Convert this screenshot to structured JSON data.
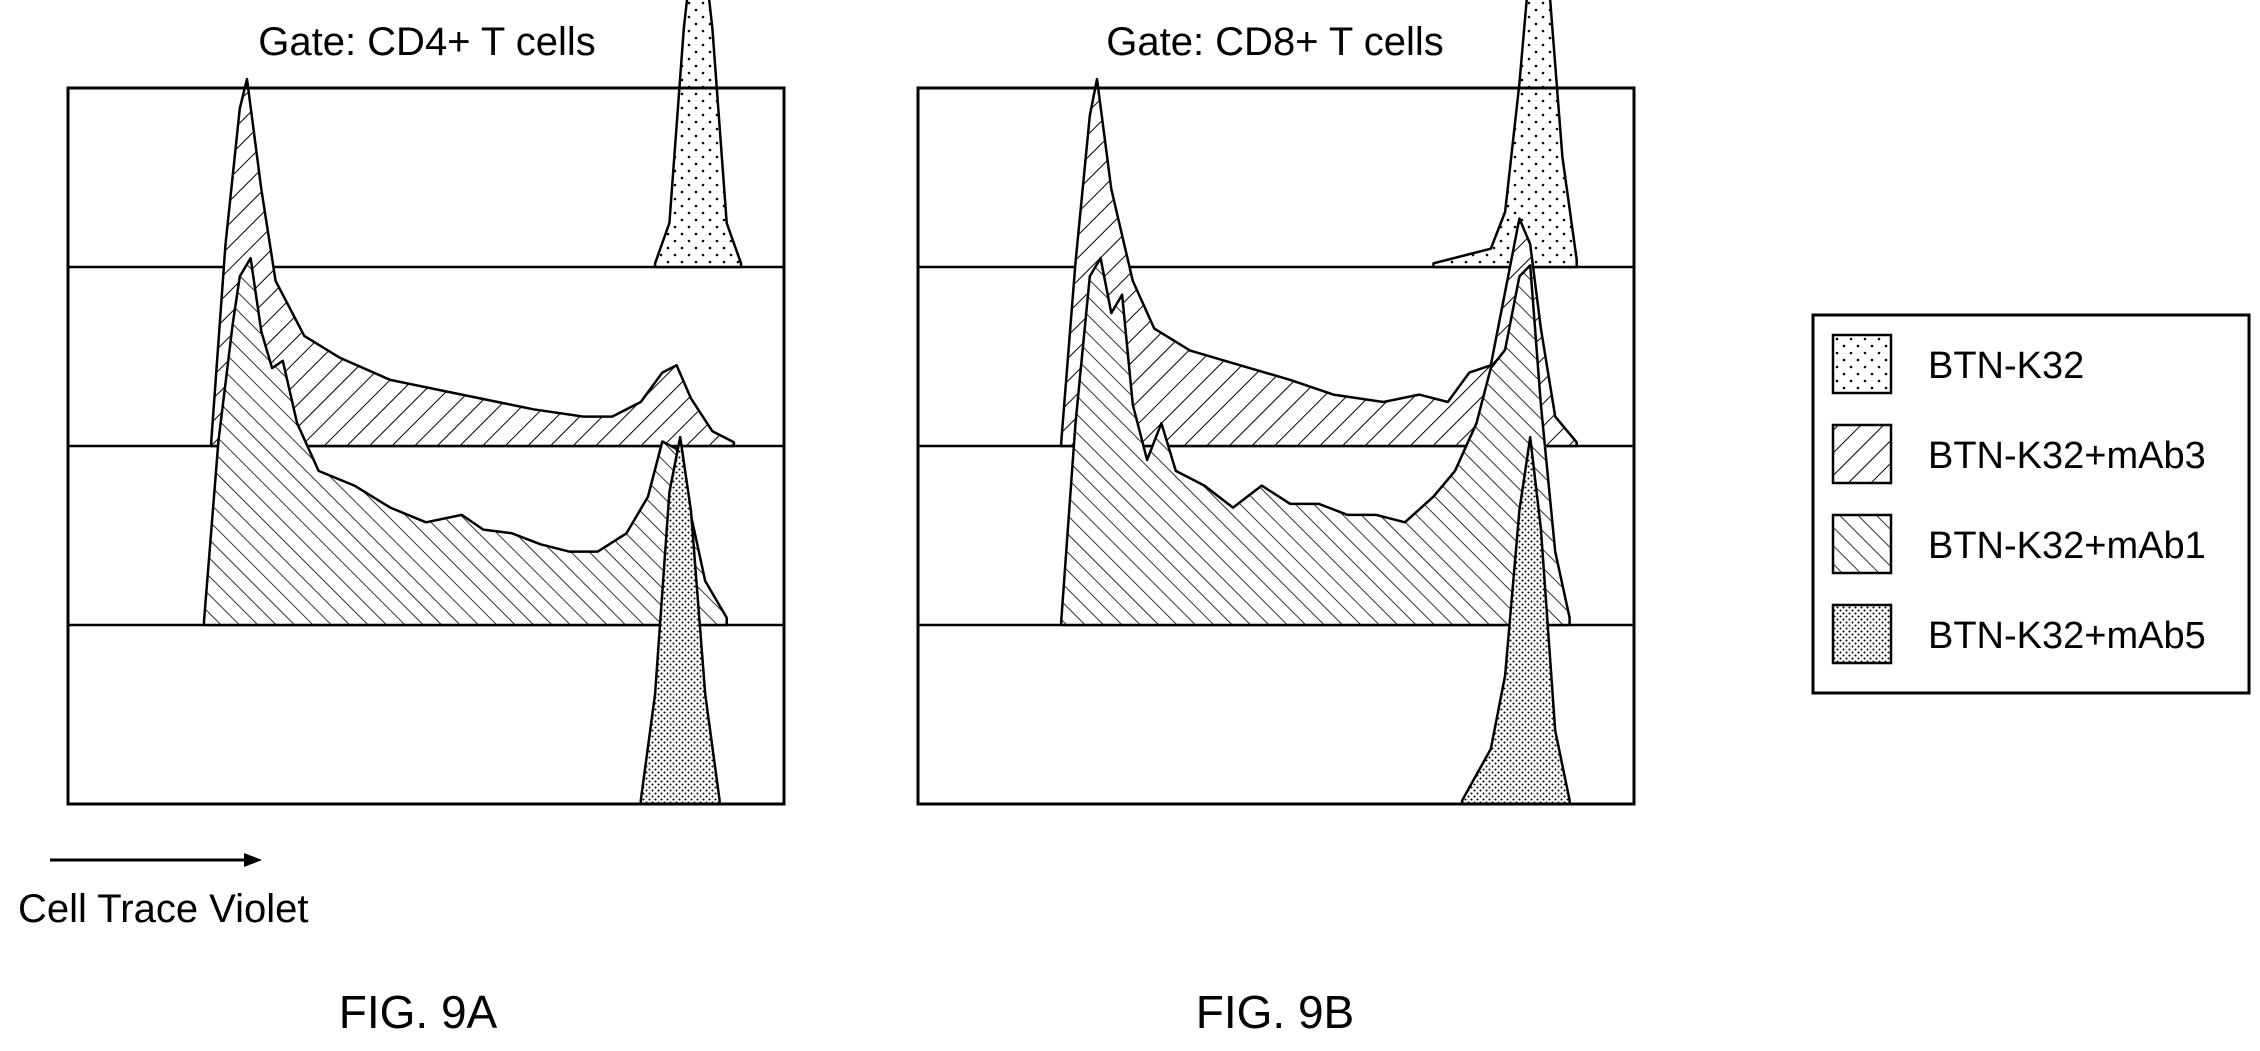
{
  "chart_data": {
    "type": "histogram-overlay",
    "x_axis_label": "Cell Trace Violet",
    "legend": {
      "placement": "right",
      "entries": [
        {
          "label": "BTN-K32",
          "pattern": "sparse-dots"
        },
        {
          "label": "BTN-K32+mAb3",
          "pattern": "forward-hatch"
        },
        {
          "label": "BTN-K32+mAb1",
          "pattern": "backward-hatch"
        },
        {
          "label": "BTN-K32+mAb5",
          "pattern": "dense-dots"
        }
      ]
    },
    "panels": [
      {
        "title": "Gate: CD4+ T cells",
        "caption": "FIG. 9A",
        "series": [
          {
            "name": "BTN-K32",
            "pattern": "sparse-dots",
            "points": [
              [
                0.82,
                0.01
              ],
              [
                0.84,
                0.12
              ],
              [
                0.86,
                0.65
              ],
              [
                0.88,
                1.0
              ],
              [
                0.9,
                0.65
              ],
              [
                0.92,
                0.12
              ],
              [
                0.94,
                0.01
              ]
            ]
          },
          {
            "name": "BTN-K32+mAb3",
            "pattern": "forward-hatch",
            "points": [
              [
                0.2,
                0.01
              ],
              [
                0.22,
                0.55
              ],
              [
                0.24,
                0.92
              ],
              [
                0.25,
                1.0
              ],
              [
                0.27,
                0.7
              ],
              [
                0.29,
                0.45
              ],
              [
                0.33,
                0.3
              ],
              [
                0.38,
                0.24
              ],
              [
                0.45,
                0.18
              ],
              [
                0.55,
                0.14
              ],
              [
                0.65,
                0.1
              ],
              [
                0.72,
                0.08
              ],
              [
                0.76,
                0.08
              ],
              [
                0.8,
                0.12
              ],
              [
                0.83,
                0.2
              ],
              [
                0.85,
                0.22
              ],
              [
                0.87,
                0.13
              ],
              [
                0.9,
                0.04
              ],
              [
                0.93,
                0.01
              ]
            ]
          },
          {
            "name": "BTN-K32+mAb1",
            "pattern": "backward-hatch",
            "points": [
              [
                0.19,
                0.01
              ],
              [
                0.21,
                0.5
              ],
              [
                0.23,
                0.82
              ],
              [
                0.24,
                0.95
              ],
              [
                0.255,
                1.0
              ],
              [
                0.27,
                0.8
              ],
              [
                0.285,
                0.7
              ],
              [
                0.3,
                0.72
              ],
              [
                0.32,
                0.55
              ],
              [
                0.35,
                0.42
              ],
              [
                0.4,
                0.38
              ],
              [
                0.45,
                0.32
              ],
              [
                0.5,
                0.28
              ],
              [
                0.55,
                0.3
              ],
              [
                0.58,
                0.26
              ],
              [
                0.62,
                0.25
              ],
              [
                0.66,
                0.22
              ],
              [
                0.7,
                0.2
              ],
              [
                0.74,
                0.2
              ],
              [
                0.78,
                0.25
              ],
              [
                0.81,
                0.35
              ],
              [
                0.83,
                0.5
              ],
              [
                0.85,
                0.48
              ],
              [
                0.87,
                0.3
              ],
              [
                0.89,
                0.12
              ],
              [
                0.92,
                0.02
              ]
            ]
          },
          {
            "name": "BTN-K32+mAb5",
            "pattern": "dense-dots",
            "points": [
              [
                0.8,
                0.01
              ],
              [
                0.82,
                0.3
              ],
              [
                0.84,
                0.85
              ],
              [
                0.855,
                1.0
              ],
              [
                0.87,
                0.8
              ],
              [
                0.89,
                0.3
              ],
              [
                0.91,
                0.01
              ]
            ]
          }
        ]
      },
      {
        "title": "Gate: CD8+ T cells",
        "caption": "FIG. 9B",
        "series": [
          {
            "name": "BTN-K32",
            "pattern": "sparse-dots",
            "points": [
              [
                0.72,
                0.01
              ],
              [
                0.76,
                0.03
              ],
              [
                0.8,
                0.05
              ],
              [
                0.82,
                0.15
              ],
              [
                0.84,
                0.5
              ],
              [
                0.86,
                0.95
              ],
              [
                0.87,
                1.0
              ],
              [
                0.88,
                0.8
              ],
              [
                0.9,
                0.3
              ],
              [
                0.92,
                0.02
              ]
            ]
          },
          {
            "name": "BTN-K32+mAb3",
            "pattern": "forward-hatch",
            "points": [
              [
                0.2,
                0.01
              ],
              [
                0.22,
                0.5
              ],
              [
                0.24,
                0.9
              ],
              [
                0.25,
                1.0
              ],
              [
                0.27,
                0.7
              ],
              [
                0.3,
                0.45
              ],
              [
                0.33,
                0.32
              ],
              [
                0.38,
                0.26
              ],
              [
                0.45,
                0.22
              ],
              [
                0.52,
                0.18
              ],
              [
                0.58,
                0.14
              ],
              [
                0.65,
                0.12
              ],
              [
                0.7,
                0.14
              ],
              [
                0.74,
                0.12
              ],
              [
                0.77,
                0.2
              ],
              [
                0.8,
                0.22
              ],
              [
                0.82,
                0.42
              ],
              [
                0.84,
                0.62
              ],
              [
                0.855,
                0.55
              ],
              [
                0.87,
                0.32
              ],
              [
                0.89,
                0.08
              ],
              [
                0.92,
                0.01
              ]
            ]
          },
          {
            "name": "BTN-K32+mAb1",
            "pattern": "backward-hatch",
            "points": [
              [
                0.2,
                0.01
              ],
              [
                0.22,
                0.55
              ],
              [
                0.24,
                0.95
              ],
              [
                0.255,
                1.0
              ],
              [
                0.27,
                0.85
              ],
              [
                0.285,
                0.9
              ],
              [
                0.3,
                0.6
              ],
              [
                0.32,
                0.45
              ],
              [
                0.34,
                0.55
              ],
              [
                0.36,
                0.42
              ],
              [
                0.4,
                0.38
              ],
              [
                0.44,
                0.32
              ],
              [
                0.48,
                0.38
              ],
              [
                0.52,
                0.33
              ],
              [
                0.56,
                0.33
              ],
              [
                0.6,
                0.3
              ],
              [
                0.64,
                0.3
              ],
              [
                0.68,
                0.28
              ],
              [
                0.72,
                0.35
              ],
              [
                0.75,
                0.42
              ],
              [
                0.78,
                0.55
              ],
              [
                0.8,
                0.7
              ],
              [
                0.82,
                0.75
              ],
              [
                0.84,
                0.95
              ],
              [
                0.855,
                0.98
              ],
              [
                0.87,
                0.6
              ],
              [
                0.89,
                0.2
              ],
              [
                0.91,
                0.02
              ]
            ]
          },
          {
            "name": "BTN-K32+mAb5",
            "pattern": "dense-dots",
            "points": [
              [
                0.76,
                0.01
              ],
              [
                0.78,
                0.08
              ],
              [
                0.8,
                0.15
              ],
              [
                0.82,
                0.35
              ],
              [
                0.84,
                0.8
              ],
              [
                0.855,
                1.0
              ],
              [
                0.87,
                0.75
              ],
              [
                0.89,
                0.2
              ],
              [
                0.91,
                0.01
              ]
            ]
          }
        ]
      }
    ]
  }
}
